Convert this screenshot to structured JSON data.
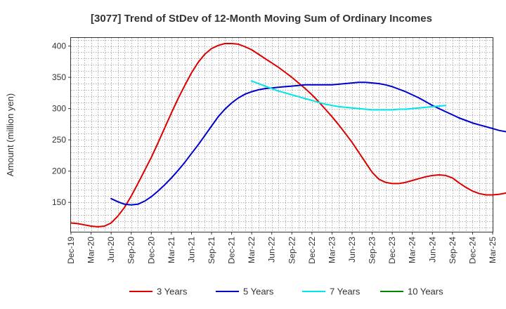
{
  "chart_data": {
    "type": "line",
    "title": "[3077]  Trend of StDev of 12-Month Moving Sum of Ordinary Incomes",
    "xlabel": "",
    "ylabel": "Amount (million yen)",
    "ylim": [
      103,
      413
    ],
    "yticks": [
      150,
      200,
      250,
      300,
      350,
      400
    ],
    "x_tick_labels": [
      "Dec-19",
      "Mar-20",
      "Jun-20",
      "Sep-20",
      "Dec-20",
      "Mar-21",
      "Jun-21",
      "Sep-21",
      "Dec-21",
      "Mar-22",
      "Jun-22",
      "Sep-22",
      "Dec-22",
      "Mar-23",
      "Jun-23",
      "Sep-23",
      "Dec-23",
      "Mar-24",
      "Jun-24",
      "Sep-24",
      "Dec-24",
      "Mar-25"
    ],
    "grid": true,
    "legend_position": "bottom",
    "series": [
      {
        "name": "3 Years",
        "color": "#dd0000",
        "values": [
          [
            0,
            117
          ],
          [
            1,
            116
          ],
          [
            2,
            114
          ],
          [
            3,
            112
          ],
          [
            4,
            111
          ],
          [
            5,
            112
          ],
          [
            6,
            117
          ],
          [
            7,
            128
          ],
          [
            8,
            142
          ],
          [
            9,
            160
          ],
          [
            10,
            180
          ],
          [
            11,
            201
          ],
          [
            12,
            222
          ],
          [
            13,
            245
          ],
          [
            14,
            269
          ],
          [
            15,
            293
          ],
          [
            16,
            316
          ],
          [
            17,
            337
          ],
          [
            18,
            357
          ],
          [
            19,
            374
          ],
          [
            20,
            387
          ],
          [
            21,
            396
          ],
          [
            22,
            401
          ],
          [
            23,
            404
          ],
          [
            24,
            404
          ],
          [
            25,
            403
          ],
          [
            26,
            399
          ],
          [
            27,
            394
          ],
          [
            28,
            387
          ],
          [
            29,
            380
          ],
          [
            30,
            373
          ],
          [
            31,
            366
          ],
          [
            32,
            358
          ],
          [
            33,
            350
          ],
          [
            34,
            341
          ],
          [
            35,
            332
          ],
          [
            36,
            322
          ],
          [
            37,
            311
          ],
          [
            38,
            299
          ],
          [
            39,
            287
          ],
          [
            40,
            274
          ],
          [
            41,
            260
          ],
          [
            42,
            246
          ],
          [
            43,
            230
          ],
          [
            44,
            214
          ],
          [
            45,
            198
          ],
          [
            46,
            187
          ],
          [
            47,
            182
          ],
          [
            48,
            180
          ],
          [
            49,
            180
          ],
          [
            50,
            182
          ],
          [
            51,
            185
          ],
          [
            52,
            188
          ],
          [
            53,
            191
          ],
          [
            54,
            193
          ],
          [
            55,
            194
          ],
          [
            56,
            193
          ],
          [
            57,
            189
          ],
          [
            58,
            181
          ],
          [
            59,
            174
          ],
          [
            60,
            168
          ],
          [
            61,
            164
          ],
          [
            62,
            162
          ],
          [
            63,
            162
          ],
          [
            64,
            163
          ],
          [
            65,
            165
          ],
          [
            66,
            168
          ],
          [
            67,
            172
          ],
          [
            68,
            177
          ]
        ]
      },
      {
        "name": "5 Years",
        "color": "#0000cc",
        "values": [
          [
            6,
            156
          ],
          [
            7,
            151
          ],
          [
            8,
            147
          ],
          [
            9,
            146
          ],
          [
            10,
            147
          ],
          [
            11,
            152
          ],
          [
            12,
            159
          ],
          [
            13,
            168
          ],
          [
            14,
            178
          ],
          [
            15,
            189
          ],
          [
            16,
            201
          ],
          [
            17,
            214
          ],
          [
            18,
            228
          ],
          [
            19,
            242
          ],
          [
            20,
            257
          ],
          [
            21,
            272
          ],
          [
            22,
            287
          ],
          [
            23,
            299
          ],
          [
            24,
            309
          ],
          [
            25,
            317
          ],
          [
            26,
            323
          ],
          [
            27,
            327
          ],
          [
            28,
            330
          ],
          [
            29,
            332
          ],
          [
            30,
            333
          ],
          [
            31,
            334
          ],
          [
            32,
            335
          ],
          [
            33,
            336
          ],
          [
            34,
            337
          ],
          [
            35,
            338
          ],
          [
            36,
            338
          ],
          [
            37,
            338
          ],
          [
            38,
            338
          ],
          [
            39,
            338
          ],
          [
            40,
            339
          ],
          [
            41,
            340
          ],
          [
            42,
            341
          ],
          [
            43,
            342
          ],
          [
            44,
            342
          ],
          [
            45,
            341
          ],
          [
            46,
            340
          ],
          [
            47,
            338
          ],
          [
            48,
            335
          ],
          [
            49,
            331
          ],
          [
            50,
            327
          ],
          [
            51,
            322
          ],
          [
            52,
            317
          ],
          [
            53,
            311
          ],
          [
            54,
            305
          ],
          [
            55,
            300
          ],
          [
            56,
            295
          ],
          [
            57,
            290
          ],
          [
            58,
            285
          ],
          [
            59,
            281
          ],
          [
            60,
            277
          ],
          [
            61,
            274
          ],
          [
            62,
            271
          ],
          [
            63,
            268
          ],
          [
            64,
            265
          ],
          [
            65,
            263
          ],
          [
            66,
            262
          ],
          [
            67,
            261
          ]
        ]
      },
      {
        "name": "7 Years",
        "color": "#00e5e5",
        "values": [
          [
            27,
            344
          ],
          [
            28,
            340
          ],
          [
            29,
            336
          ],
          [
            30,
            332
          ],
          [
            31,
            328
          ],
          [
            32,
            325
          ],
          [
            33,
            322
          ],
          [
            34,
            319
          ],
          [
            35,
            316
          ],
          [
            36,
            313
          ],
          [
            37,
            310
          ],
          [
            38,
            307
          ],
          [
            39,
            305
          ],
          [
            40,
            303
          ],
          [
            41,
            302
          ],
          [
            42,
            301
          ],
          [
            43,
            300
          ],
          [
            44,
            299
          ],
          [
            45,
            298
          ],
          [
            46,
            298
          ],
          [
            47,
            298
          ],
          [
            48,
            298
          ],
          [
            49,
            299
          ],
          [
            50,
            299
          ],
          [
            51,
            300
          ],
          [
            52,
            301
          ],
          [
            53,
            302
          ],
          [
            54,
            303
          ],
          [
            55,
            304
          ],
          [
            56,
            305
          ]
        ]
      },
      {
        "name": "10 Years",
        "color": "#008800",
        "values": []
      }
    ]
  }
}
